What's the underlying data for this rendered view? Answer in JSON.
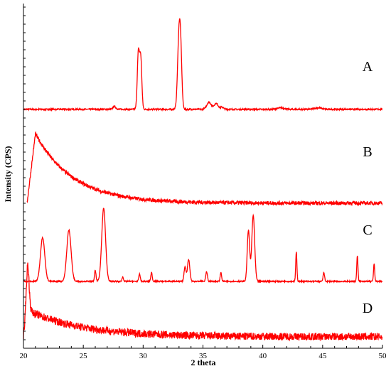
{
  "chart_data": {
    "type": "line",
    "xlabel": "2 theta",
    "ylabel": "Intensity (CPS)",
    "xlim": [
      20,
      50
    ],
    "x_ticks": [
      "20",
      "25",
      "30",
      "35",
      "40",
      "45",
      "50"
    ],
    "y_tick_labels_shown": false,
    "color": "#ff0000",
    "series": [
      {
        "name": "A",
        "baseline": 0.08,
        "noise": 0.01,
        "peaks": [
          {
            "x": 27.6,
            "h": 0.04,
            "w": 0.12
          },
          {
            "x": 29.6,
            "h": 0.77,
            "w": 0.09
          },
          {
            "x": 29.8,
            "h": 0.7,
            "w": 0.09
          },
          {
            "x": 33.0,
            "h": 1.0,
            "w": 0.12
          },
          {
            "x": 33.15,
            "h": 0.55,
            "w": 0.1
          },
          {
            "x": 35.5,
            "h": 0.1,
            "w": 0.18
          },
          {
            "x": 36.1,
            "h": 0.08,
            "w": 0.18
          },
          {
            "x": 36.6,
            "h": 0.03,
            "w": 0.12
          },
          {
            "x": 41.5,
            "h": 0.02,
            "w": 0.3
          },
          {
            "x": 44.6,
            "h": 0.02,
            "w": 0.3
          }
        ]
      },
      {
        "name": "B",
        "baseline": 0.04,
        "noise": 0.025,
        "decay": {
          "amplitude": 0.93,
          "rate": 0.32,
          "start": 20.3,
          "rise_end": 21.0
        }
      },
      {
        "name": "C",
        "baseline": 0.04,
        "noise": 0.008,
        "peaks": [
          {
            "x": 21.6,
            "h": 0.6,
            "w": 0.18
          },
          {
            "x": 23.8,
            "h": 0.7,
            "w": 0.18
          },
          {
            "x": 26.0,
            "h": 0.15,
            "w": 0.06
          },
          {
            "x": 26.7,
            "h": 1.0,
            "w": 0.16
          },
          {
            "x": 28.3,
            "h": 0.06,
            "w": 0.06
          },
          {
            "x": 29.7,
            "h": 0.1,
            "w": 0.06
          },
          {
            "x": 30.7,
            "h": 0.12,
            "w": 0.06
          },
          {
            "x": 33.5,
            "h": 0.2,
            "w": 0.08
          },
          {
            "x": 33.8,
            "h": 0.3,
            "w": 0.1
          },
          {
            "x": 35.3,
            "h": 0.13,
            "w": 0.07
          },
          {
            "x": 36.5,
            "h": 0.12,
            "w": 0.06
          },
          {
            "x": 38.8,
            "h": 0.7,
            "w": 0.1
          },
          {
            "x": 39.2,
            "h": 0.9,
            "w": 0.12
          },
          {
            "x": 42.8,
            "h": 0.4,
            "w": 0.05
          },
          {
            "x": 45.1,
            "h": 0.12,
            "w": 0.06
          },
          {
            "x": 47.9,
            "h": 0.35,
            "w": 0.05
          },
          {
            "x": 49.3,
            "h": 0.24,
            "w": 0.05
          }
        ]
      },
      {
        "name": "D",
        "baseline": 0.06,
        "noise": 0.08,
        "decay": {
          "amplitude": 0.55,
          "rate": 0.22,
          "start": 20.0,
          "rise_end": 20.35
        },
        "spike": {
          "x": 20.35,
          "h": 0.95,
          "w": 0.12
        }
      }
    ]
  }
}
